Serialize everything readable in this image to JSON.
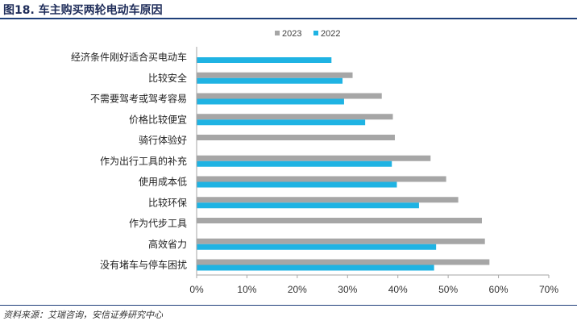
{
  "figure": {
    "title": "图18. 车主购买两轮电动车原因",
    "source": "资料来源：艾瑞咨询，安信证券研究中心"
  },
  "chart_data": {
    "type": "bar",
    "orientation": "horizontal",
    "categories": [
      "经济条件刚好适合买电动车",
      "比较安全",
      "不需要驾考或驾考容易",
      "价格比较便宜",
      "骑行体验好",
      "作为出行工具的补充",
      "使用成本低",
      "比较环保",
      "作为代步工具",
      "高效省力",
      "没有堵车与停车困扰"
    ],
    "series": [
      {
        "name": "2023",
        "color": "#a6a6a6",
        "values": [
          null,
          31.0,
          36.8,
          39.0,
          39.4,
          46.5,
          49.6,
          52.0,
          56.7,
          57.3,
          58.2
        ]
      },
      {
        "name": "2022",
        "color": "#1fb3e3",
        "values": [
          26.8,
          29.0,
          29.3,
          33.5,
          null,
          38.8,
          39.8,
          44.2,
          null,
          47.6,
          47.2
        ]
      }
    ],
    "xlim": [
      0,
      70
    ],
    "xticks": [
      "0%",
      "10%",
      "20%",
      "30%",
      "40%",
      "50%",
      "60%",
      "70%"
    ],
    "xtick_values": [
      0,
      10,
      20,
      30,
      40,
      50,
      60,
      70
    ],
    "legend": "top",
    "grid": false
  }
}
